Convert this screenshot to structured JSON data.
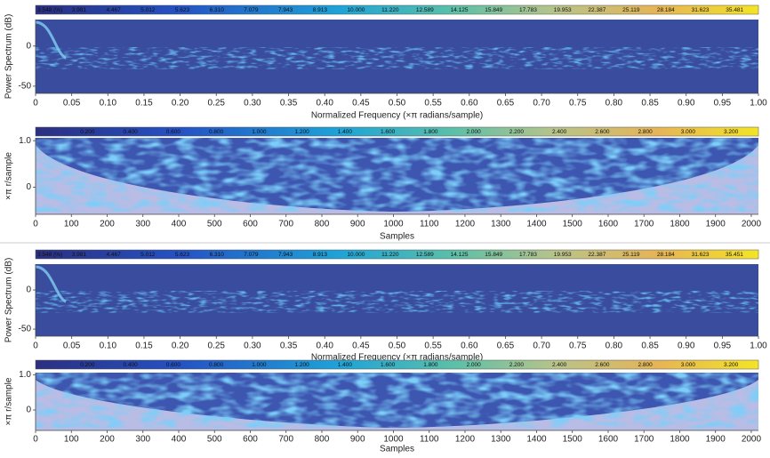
{
  "chart_data": [
    {
      "type": "heatmap",
      "colorbar": {
        "ticks": [
          {
            "value": 3.548,
            "label": "3.548 (%)"
          },
          3.981,
          4.467,
          5.012,
          5.623,
          {
            "value": 6.31,
            "label": "6.310"
          },
          7.079,
          7.943,
          8.913,
          {
            "value": 10,
            "label": "10.000"
          },
          {
            "value": 11.22,
            "label": "11.220"
          },
          12.589,
          14.125,
          15.849,
          17.783,
          19.953,
          22.387,
          25.119,
          28.184,
          31.623,
          35.481
        ],
        "lim": [
          3.548,
          39.81
        ],
        "log": true
      },
      "ylabel": "Power Spectrum (dB)",
      "xlabel": "Normalized Frequency (×π radians/sample)",
      "xlim": [
        0,
        1
      ],
      "xticks": [
        0,
        0.05,
        {
          "value": 0.1,
          "label": "0.10"
        },
        0.15,
        {
          "value": 0.2,
          "label": "0.20"
        },
        0.25,
        {
          "value": 0.3,
          "label": "0.30"
        },
        0.35,
        {
          "value": 0.4,
          "label": "0.40"
        },
        0.45,
        {
          "value": 0.5,
          "label": "0.50"
        },
        0.55,
        {
          "value": 0.6,
          "label": "0.60"
        },
        0.65,
        {
          "value": 0.7,
          "label": "0.70"
        },
        0.75,
        {
          "value": 0.8,
          "label": "0.80"
        },
        0.85,
        {
          "value": 0.9,
          "label": "0.90"
        },
        0.95,
        {
          "value": 1,
          "label": "1.00"
        }
      ],
      "ylim": [
        -59,
        33
      ],
      "yticks": [
        0,
        -50
      ]
    },
    {
      "type": "bowl",
      "colorbar": {
        "ticks": [
          {
            "value": 0.2,
            "label": "0.200"
          },
          {
            "value": 0.4,
            "label": "0.400"
          },
          {
            "value": 0.6,
            "label": "0.600"
          },
          {
            "value": 0.8,
            "label": "0.800"
          },
          {
            "value": 1,
            "label": "1.000"
          },
          {
            "value": 1.2,
            "label": "1.200"
          },
          {
            "value": 1.4,
            "label": "1.400"
          },
          {
            "value": 1.6,
            "label": "1.600"
          },
          {
            "value": 1.8,
            "label": "1.800"
          },
          {
            "value": 2,
            "label": "2.000"
          },
          {
            "value": 2.2,
            "label": "2.200"
          },
          {
            "value": 2.4,
            "label": "2.400"
          },
          {
            "value": 2.6,
            "label": "2.600"
          },
          {
            "value": 2.8,
            "label": "2.800"
          },
          {
            "value": 3,
            "label": "3.000"
          },
          {
            "value": 3.2,
            "label": "3.200"
          }
        ],
        "lim": [
          0,
          3.37
        ],
        "log": false
      },
      "ylabel": "×π r/sample",
      "xlabel": "Samples",
      "xlim": [
        0,
        2020
      ],
      "xticks": [
        0,
        100,
        200,
        300,
        400,
        500,
        600,
        700,
        800,
        900,
        1000,
        1100,
        1200,
        1300,
        1400,
        1500,
        1600,
        1700,
        1800,
        1900,
        2000
      ],
      "ylim": [
        -0.58,
        1.06
      ],
      "yticks": [
        {
          "value": 1,
          "label": "1.0"
        },
        0
      ]
    },
    {
      "type": "heatmap",
      "colorbar": {
        "ticks": [
          {
            "value": 3.548,
            "label": "3.548 (%)"
          },
          3.981,
          4.467,
          5.012,
          5.623,
          {
            "value": 6.31,
            "label": "6.310"
          },
          7.079,
          7.943,
          8.913,
          {
            "value": 10,
            "label": "10.000"
          },
          {
            "value": 11.22,
            "label": "11.220"
          },
          12.589,
          14.125,
          15.849,
          17.783,
          19.953,
          22.387,
          25.119,
          28.184,
          31.623,
          35.451
        ],
        "lim": [
          3.548,
          39.81
        ],
        "log": true
      },
      "ylabel": "Power Spectrum (dB)",
      "xlabel": "Normalized Frequency (×π radians/sample)",
      "xlim": [
        0,
        1
      ],
      "xticks": [
        0,
        0.05,
        {
          "value": 0.1,
          "label": "0.10"
        },
        0.15,
        {
          "value": 0.2,
          "label": "0.20"
        },
        0.25,
        {
          "value": 0.3,
          "label": "0.30"
        },
        0.35,
        {
          "value": 0.4,
          "label": "0.40"
        },
        0.45,
        {
          "value": 0.5,
          "label": "0.50"
        },
        0.55,
        {
          "value": 0.6,
          "label": "0.60"
        },
        0.65,
        {
          "value": 0.7,
          "label": "0.70"
        },
        0.75,
        {
          "value": 0.8,
          "label": "0.80"
        },
        0.85,
        {
          "value": 0.9,
          "label": "0.90"
        },
        0.95,
        {
          "value": 1,
          "label": "1.00"
        }
      ],
      "ylim": [
        -59,
        33
      ],
      "yticks": [
        0,
        -50
      ]
    },
    {
      "type": "bowl",
      "colorbar": {
        "ticks": [
          {
            "value": 0.2,
            "label": "0.200"
          },
          {
            "value": 0.4,
            "label": "0.400"
          },
          {
            "value": 0.6,
            "label": "0.600"
          },
          {
            "value": 0.8,
            "label": "0.800"
          },
          {
            "value": 1,
            "label": "1.000"
          },
          {
            "value": 1.2,
            "label": "1.200"
          },
          {
            "value": 1.4,
            "label": "1.400"
          },
          {
            "value": 1.6,
            "label": "1.600"
          },
          {
            "value": 1.8,
            "label": "1.800"
          },
          {
            "value": 2,
            "label": "2.000"
          },
          {
            "value": 2.2,
            "label": "2.200"
          },
          {
            "value": 2.4,
            "label": "2.400"
          },
          {
            "value": 2.6,
            "label": "2.600"
          },
          {
            "value": 2.8,
            "label": "2.800"
          },
          {
            "value": 3,
            "label": "3.000"
          },
          {
            "value": 3.2,
            "label": "3.200"
          }
        ],
        "lim": [
          0,
          3.37
        ],
        "log": false
      },
      "ylabel": "×π r/sample",
      "xlabel": "Samples",
      "xlim": [
        0,
        2020
      ],
      "xticks": [
        0,
        100,
        200,
        300,
        400,
        500,
        600,
        700,
        800,
        900,
        1000,
        1100,
        1200,
        1300,
        1400,
        1500,
        1600,
        1700,
        1800,
        1900,
        2000
      ],
      "ylim": [
        -0.58,
        1.06
      ],
      "yticks": [
        {
          "value": 1,
          "label": "1.0"
        },
        0
      ]
    }
  ]
}
